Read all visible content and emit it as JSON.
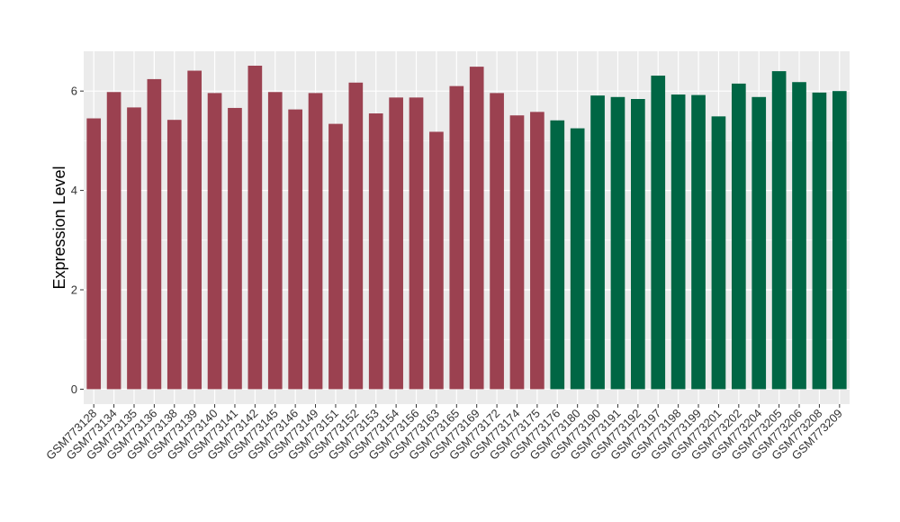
{
  "chart_data": {
    "type": "bar",
    "title": "",
    "xlabel": "",
    "ylabel": "Expression Level",
    "ylim": [
      -0.3,
      6.8
    ],
    "yticks": [
      0,
      2,
      4,
      6
    ],
    "grid": true,
    "legend": "none",
    "colors": {
      "group1": "#9b4150",
      "group2": "#006644",
      "panel": "#ebebeb",
      "grid": "#ffffff"
    },
    "categories": [
      "GSM773128",
      "GSM773134",
      "GSM773135",
      "GSM773136",
      "GSM773138",
      "GSM773139",
      "GSM773140",
      "GSM773141",
      "GSM773142",
      "GSM773145",
      "GSM773146",
      "GSM773149",
      "GSM773151",
      "GSM773152",
      "GSM773153",
      "GSM773154",
      "GSM773156",
      "GSM773163",
      "GSM773165",
      "GSM773169",
      "GSM773172",
      "GSM773174",
      "GSM773175",
      "GSM773176",
      "GSM773180",
      "GSM773190",
      "GSM773191",
      "GSM773192",
      "GSM773197",
      "GSM773198",
      "GSM773199",
      "GSM773201",
      "GSM773202",
      "GSM773204",
      "GSM773205",
      "GSM773206",
      "GSM773208",
      "GSM773209"
    ],
    "values": [
      5.45,
      5.98,
      5.67,
      6.24,
      5.42,
      6.41,
      5.96,
      5.66,
      6.51,
      5.98,
      5.63,
      5.96,
      5.34,
      6.17,
      5.55,
      5.87,
      5.87,
      5.18,
      6.1,
      6.49,
      5.96,
      5.51,
      5.58,
      5.41,
      5.25,
      5.91,
      5.88,
      5.84,
      6.31,
      5.93,
      5.92,
      5.49,
      6.15,
      5.88,
      6.4,
      6.18,
      5.97,
      6.0
    ],
    "groups": [
      "group1",
      "group1",
      "group1",
      "group1",
      "group1",
      "group1",
      "group1",
      "group1",
      "group1",
      "group1",
      "group1",
      "group1",
      "group1",
      "group1",
      "group1",
      "group1",
      "group1",
      "group1",
      "group1",
      "group1",
      "group1",
      "group1",
      "group1",
      "group2",
      "group2",
      "group2",
      "group2",
      "group2",
      "group2",
      "group2",
      "group2",
      "group2",
      "group2",
      "group2",
      "group2",
      "group2",
      "group2",
      "group2"
    ]
  }
}
